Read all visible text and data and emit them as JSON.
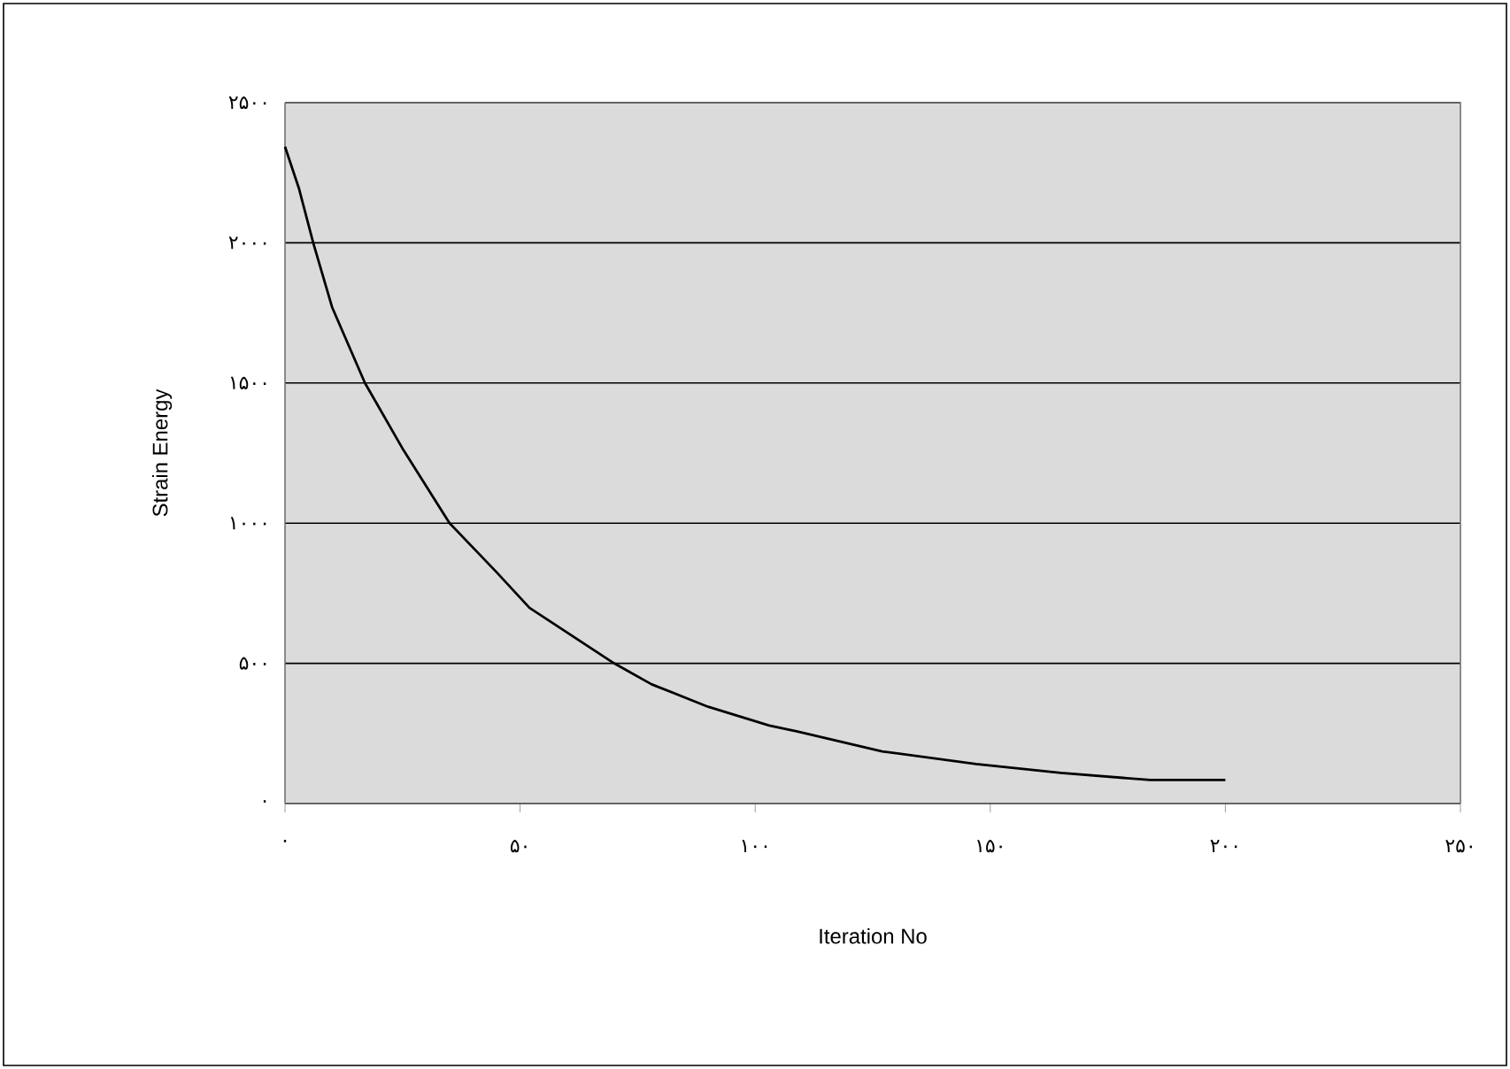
{
  "chart_data": {
    "type": "line",
    "xlabel": "Iteration No",
    "ylabel": "Strain Energy",
    "x": [
      0,
      3,
      6,
      10,
      17,
      25,
      35,
      45,
      52,
      70,
      78,
      90,
      103,
      109,
      127,
      147,
      165,
      184,
      200
    ],
    "values": [
      2343,
      2192,
      2000,
      1771,
      1500,
      1266,
      1000,
      825,
      698,
      500,
      425,
      345,
      278,
      257,
      186,
      141,
      109,
      84,
      84
    ],
    "color": "#000000",
    "xlim": [
      0,
      250
    ],
    "ylim": [
      0,
      2500
    ],
    "xticks": [
      {
        "value": 0,
        "label": "۰"
      },
      {
        "value": 50,
        "label": "۵۰"
      },
      {
        "value": 100,
        "label": "۱۰۰"
      },
      {
        "value": 150,
        "label": "۱۵۰"
      },
      {
        "value": 200,
        "label": "۲۰۰"
      },
      {
        "value": 250,
        "label": "۲۵۰"
      }
    ],
    "yticks": [
      {
        "value": 0,
        "label": "۰"
      },
      {
        "value": 500,
        "label": "۵۰۰"
      },
      {
        "value": 1000,
        "label": "۱۰۰۰"
      },
      {
        "value": 1500,
        "label": "۱۵۰۰"
      },
      {
        "value": 2000,
        "label": "۲۰۰۰"
      },
      {
        "value": 2500,
        "label": "۲۵۰۰"
      }
    ],
    "grid": "y",
    "marker": "none",
    "line_style": "solid"
  }
}
